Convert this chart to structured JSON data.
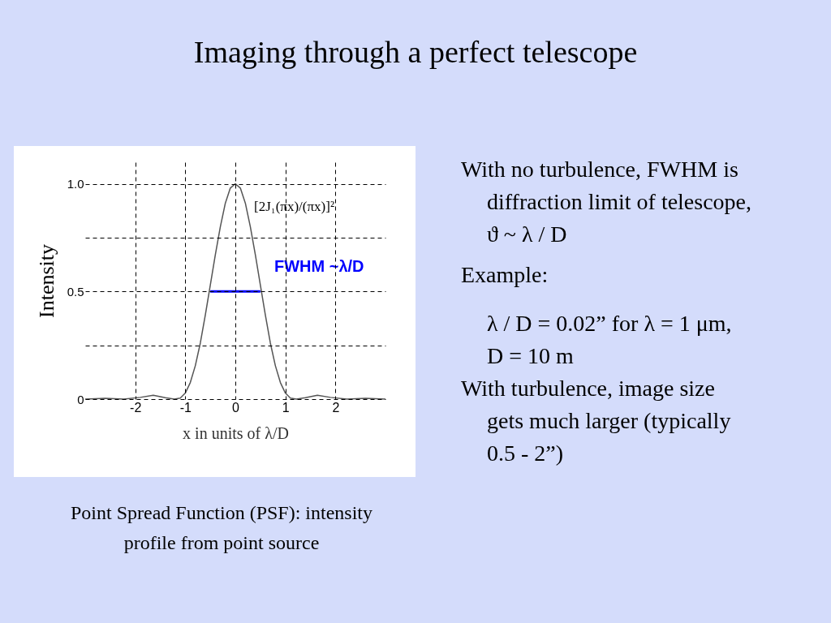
{
  "chart_data": {
    "type": "line",
    "title": "Imaging through a perfect telescope",
    "xlabel": "x  in units of λ/D",
    "ylabel": "Intensity",
    "xlim": [
      -3,
      3
    ],
    "ylim": [
      0,
      1.1
    ],
    "xticks": [
      -2,
      -1,
      0,
      1,
      2
    ],
    "yticks": [
      0,
      {
        "value": 0.25,
        "label": null
      },
      {
        "value": 0.5,
        "label": "0.5"
      },
      {
        "value": 0.75,
        "label": null
      },
      {
        "value": 1,
        "label": "1.0"
      }
    ],
    "grid": true,
    "line_style": "solid",
    "x": [
      -3,
      -2.6,
      -2.23,
      -1.9,
      -1.64,
      -1.4,
      -1.22,
      -1.1,
      -1.0,
      -0.9,
      -0.8,
      -0.7,
      -0.6,
      -0.5,
      -0.4,
      -0.3,
      -0.2,
      -0.1,
      0,
      0.1,
      0.2,
      0.3,
      0.4,
      0.5,
      0.6,
      0.7,
      0.8,
      0.9,
      1.0,
      1.1,
      1.22,
      1.4,
      1.64,
      1.9,
      2.23,
      2.6,
      3
    ],
    "series": [
      {
        "color": "#555555",
        "values": [
          0,
          0.004,
          0,
          0.008,
          0.018,
          0.007,
          0,
          0.005,
          0.028,
          0.077,
          0.155,
          0.26,
          0.39,
          0.53,
          0.67,
          0.8,
          0.91,
          0.98,
          1,
          0.98,
          0.91,
          0.8,
          0.67,
          0.53,
          0.39,
          0.26,
          0.155,
          0.077,
          0.028,
          0.005,
          0,
          0.007,
          0.018,
          0.008,
          0,
          0.004,
          0
        ]
      },
      {
        "type": "line",
        "color": "#0000ff",
        "x": [
          -0.5,
          0.5
        ],
        "values": [
          0.5,
          0.5
        ]
      }
    ],
    "annotations": [
      "[2J₁(πx)/(πx)]²",
      "FWHM ~λ/D",
      "Point Spread Function (PSF):  intensity profile from point source",
      "With no turbulence, FWHM is diffraction limit of telescope, ϑ ~  λ / D",
      "Example:",
      "λ / D = 0.02” for  λ = 1 μm, D = 10 m",
      "With turbulence, image size gets much larger (typically 0.5 - 2”)"
    ]
  }
}
